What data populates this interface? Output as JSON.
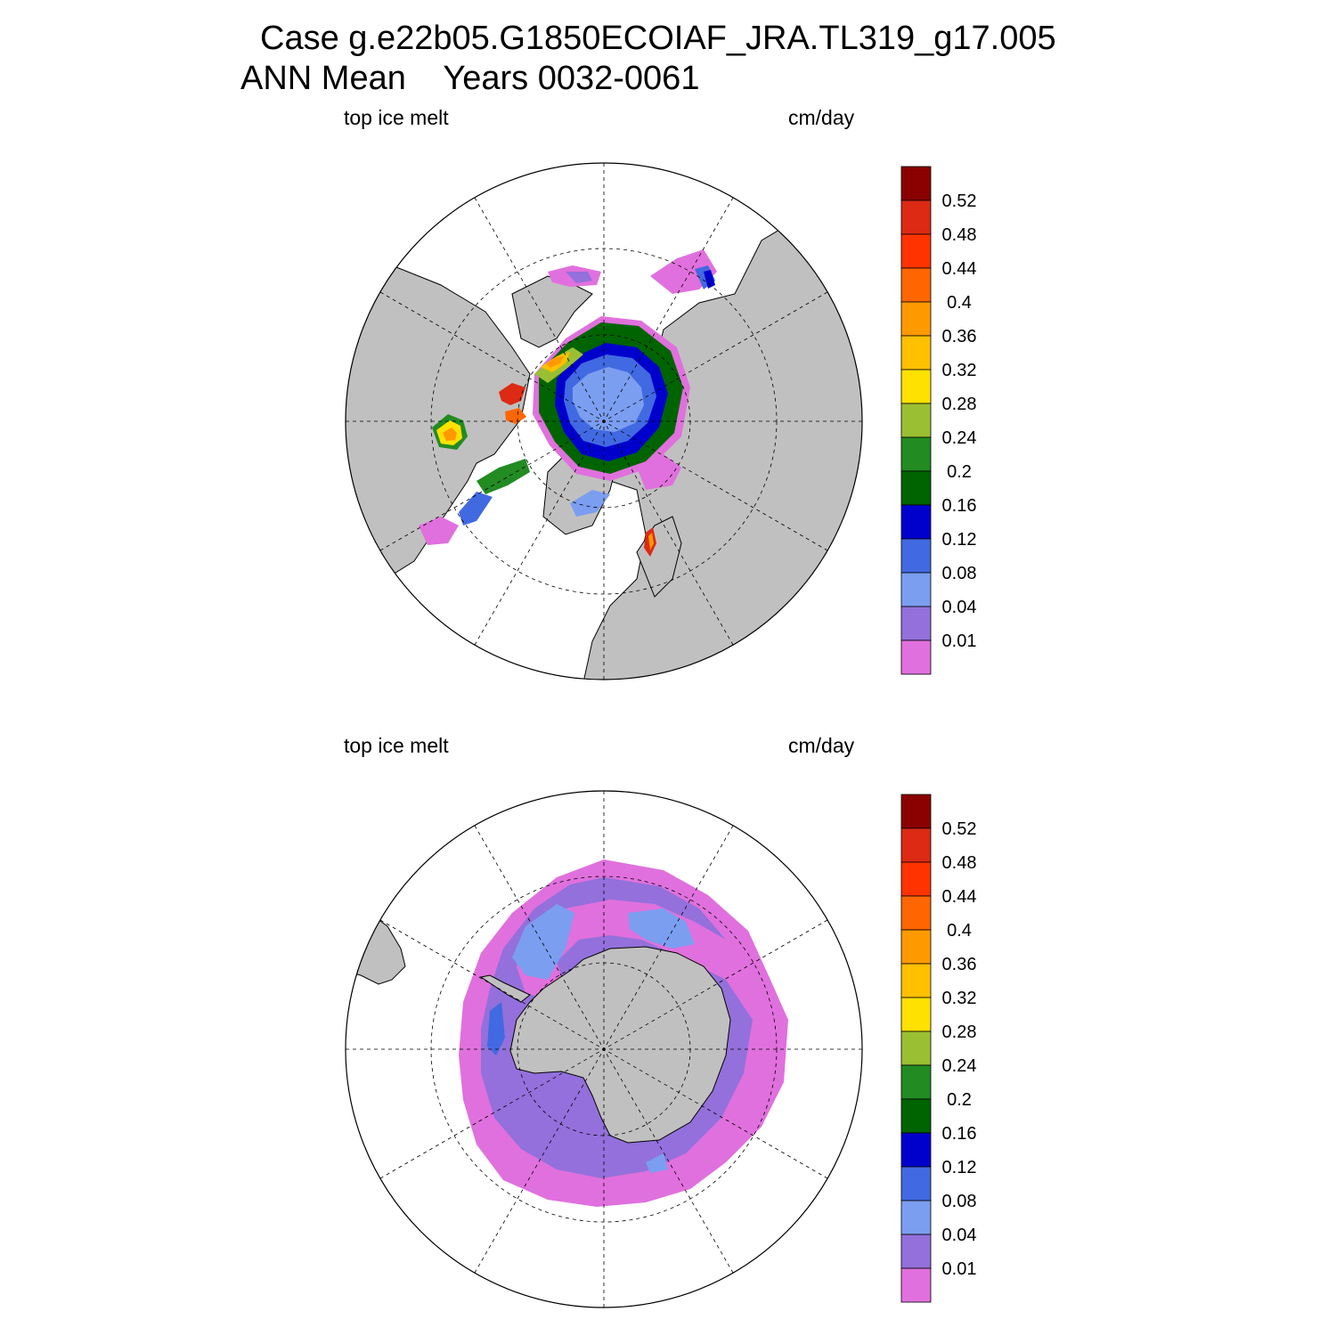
{
  "title": {
    "line1": "Case g.e22b05.G1850ECOIAF_JRA.TL319_g17.005",
    "line2": "ANN Mean    Years 0032-0061"
  },
  "colorbar": {
    "labels": [
      "0.52",
      "0.48",
      "0.44",
      "0.4",
      "0.36",
      "0.32",
      "0.28",
      "0.24",
      "0.2",
      "0.16",
      "0.12",
      "0.08",
      "0.04",
      "0.01"
    ],
    "colors": [
      "#8b0000",
      "#dc2a14",
      "#ff3300",
      "#ff6600",
      "#ff9900",
      "#ffc000",
      "#ffe100",
      "#9bbf32",
      "#228b22",
      "#006400",
      "#0000cd",
      "#4169e1",
      "#7b9ef0",
      "#9370db",
      "#e070dd"
    ]
  },
  "colors": {
    "land": "#c0c0c0",
    "ocean": "#ffffff",
    "outline": "#000000"
  },
  "panels": [
    {
      "id": "north",
      "hemisphere": "Northern Hemisphere",
      "left_label": "top ice melt",
      "right_label": "cm/day"
    },
    {
      "id": "south",
      "hemisphere": "Southern Hemisphere",
      "left_label": "top ice melt",
      "right_label": "cm/day"
    }
  ]
}
